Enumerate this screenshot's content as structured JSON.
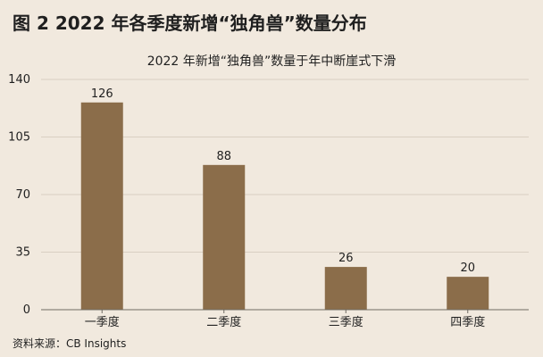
{
  "figure_title": "图 2  2022 年各季度新增“独角兽”数量分布",
  "source_note": "资料来源：CB Insights",
  "colors": {
    "background": "#f1e9de",
    "bar": "#8b6d4a",
    "grid": "#d9cfc2",
    "text": "#1f1f1f"
  },
  "chart_data": {
    "type": "bar",
    "title": "2022 年新增“独角兽”数量于年中断崖式下滑",
    "xlabel": "",
    "ylabel": "",
    "categories": [
      "一季度",
      "二季度",
      "三季度",
      "四季度"
    ],
    "values": [
      126,
      88,
      26,
      20
    ],
    "data_labels": [
      "126",
      "88",
      "26",
      "20"
    ],
    "ylim": [
      0,
      140
    ],
    "yticks": [
      0,
      35,
      70,
      105,
      140
    ],
    "ytick_labels": [
      "0",
      "35",
      "70",
      "105",
      "140"
    ],
    "grid": true,
    "legend": "none"
  }
}
